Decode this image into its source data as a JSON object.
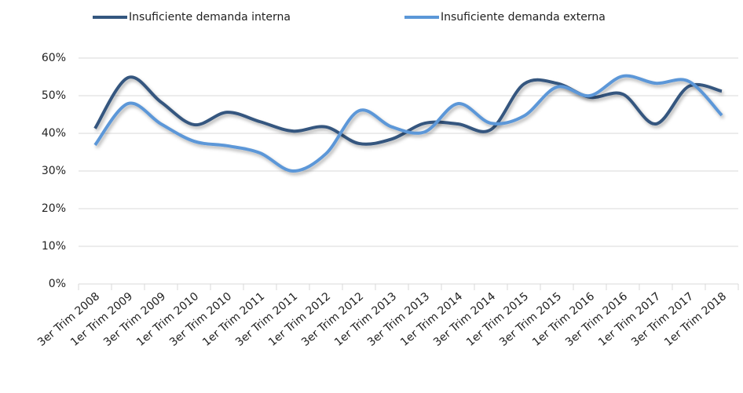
{
  "chart_data": {
    "type": "line",
    "categories": [
      "3er Trim 2008",
      "1er Trim 2009",
      "3er Trim 2009",
      "1er Trim 2010",
      "3er Trim 2010",
      "1er Trim 2011",
      "3er Trim 2011",
      "1er Trim 2012",
      "3er Trim 2012",
      "1er Trim 2013",
      "3er Trim 2013",
      "1er Trim 2014",
      "3er Trim 2014",
      "1er Trim 2015",
      "3er Trim 2015",
      "1er Trim 2016",
      "3er Trim 2016",
      "1er Trim 2017",
      "3er Trim 2017",
      "1er Trim 2018"
    ],
    "series": [
      {
        "name": "Insuficiente demanda interna",
        "color": "#34577f",
        "values": [
          41.3,
          54.8,
          48.3,
          42.3,
          45.6,
          43.1,
          40.6,
          41.7,
          37.3,
          38.5,
          42.7,
          42.5,
          41,
          53.1,
          53.3,
          49.6,
          50.4,
          42.5,
          52.5,
          51.2
        ]
      },
      {
        "name": "Insuficiente demanda externa",
        "color": "#5b97d8",
        "values": [
          36.9,
          47.9,
          42.5,
          37.9,
          36.7,
          34.8,
          30,
          34.6,
          46,
          41.7,
          40.4,
          47.9,
          42.7,
          44.6,
          52.3,
          50,
          55.2,
          53.3,
          53.8,
          44.8
        ]
      }
    ],
    "ylim": [
      0,
      60
    ],
    "yticks": [
      {
        "value": 0,
        "label": "0%"
      },
      {
        "value": 10,
        "label": "10%"
      },
      {
        "value": 20,
        "label": "20%"
      },
      {
        "value": 30,
        "label": "30%"
      },
      {
        "value": 40,
        "label": "40%"
      },
      {
        "value": 50,
        "label": "50%"
      },
      {
        "value": 60,
        "label": "60%"
      }
    ],
    "grid": true
  }
}
